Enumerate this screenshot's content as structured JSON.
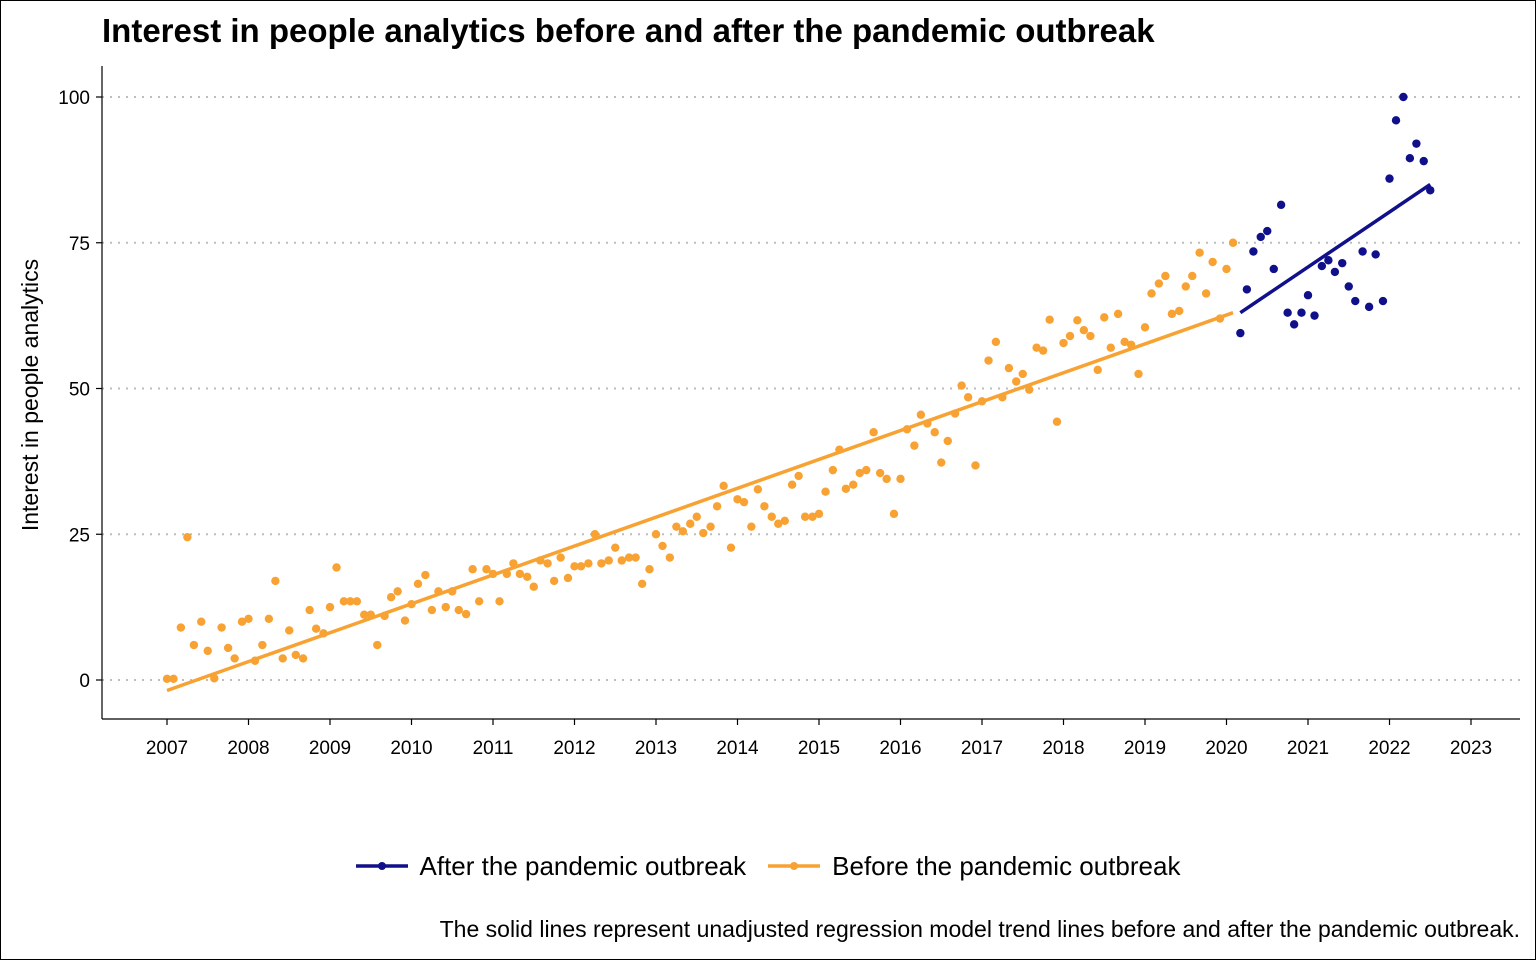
{
  "chart_data": {
    "type": "scatter",
    "title": "Interest in people analytics before and after the pandemic outbreak",
    "xlabel": "",
    "ylabel": "Interest in people analytics",
    "caption": "The solid lines represent unadjusted regression model trend lines before and after the pandemic outbreak.",
    "xlim": [
      2006.2,
      2023.3
    ],
    "ylim": [
      -6.5,
      105
    ],
    "x_ticks": [
      "2007",
      "2008",
      "2009",
      "2010",
      "2011",
      "2012",
      "2013",
      "2014",
      "2015",
      "2016",
      "2017",
      "2018",
      "2019",
      "2020",
      "2021",
      "2022",
      "2023"
    ],
    "y_ticks": [
      "0",
      "25",
      "50",
      "75",
      "100"
    ],
    "grid": "horizontal dotted",
    "legend_position": "bottom",
    "series": [
      {
        "name": "After the pandemic outbreak",
        "color": "#10108a",
        "trend": [
          [
            2020.17,
            63
          ],
          [
            2022.5,
            85
          ]
        ],
        "points": [
          [
            2020.17,
            59.5
          ],
          [
            2020.25,
            67
          ],
          [
            2020.33,
            73.5
          ],
          [
            2020.42,
            76
          ],
          [
            2020.5,
            77
          ],
          [
            2020.58,
            70.5
          ],
          [
            2020.67,
            81.5
          ],
          [
            2020.75,
            63
          ],
          [
            2020.83,
            61
          ],
          [
            2020.92,
            63
          ],
          [
            2021.0,
            66
          ],
          [
            2021.08,
            62.5
          ],
          [
            2021.17,
            71
          ],
          [
            2021.25,
            72
          ],
          [
            2021.33,
            70
          ],
          [
            2021.42,
            71.5
          ],
          [
            2021.5,
            67.5
          ],
          [
            2021.58,
            65
          ],
          [
            2021.67,
            73.5
          ],
          [
            2021.75,
            64
          ],
          [
            2021.83,
            73
          ],
          [
            2021.92,
            65
          ],
          [
            2022.0,
            86
          ],
          [
            2022.08,
            96
          ],
          [
            2022.17,
            100
          ],
          [
            2022.25,
            89.5
          ],
          [
            2022.33,
            92
          ],
          [
            2022.42,
            89
          ],
          [
            2022.5,
            84
          ]
        ]
      },
      {
        "name": "Before the pandemic outbreak",
        "color": "#f7a232",
        "trend": [
          [
            2007.0,
            -1.8
          ],
          [
            2020.08,
            63
          ]
        ],
        "points": [
          [
            2007.0,
            0.2
          ],
          [
            2007.08,
            0.2
          ],
          [
            2007.17,
            9
          ],
          [
            2007.25,
            24.5
          ],
          [
            2007.33,
            6
          ],
          [
            2007.42,
            10
          ],
          [
            2007.5,
            5
          ],
          [
            2007.58,
            0.3
          ],
          [
            2007.67,
            9
          ],
          [
            2007.75,
            5.5
          ],
          [
            2007.83,
            3.7
          ],
          [
            2007.92,
            10
          ],
          [
            2008.0,
            10.5
          ],
          [
            2008.08,
            3.3
          ],
          [
            2008.17,
            6
          ],
          [
            2008.25,
            10.5
          ],
          [
            2008.33,
            17
          ],
          [
            2008.42,
            3.7
          ],
          [
            2008.5,
            8.5
          ],
          [
            2008.58,
            4.3
          ],
          [
            2008.67,
            3.7
          ],
          [
            2008.75,
            12
          ],
          [
            2008.83,
            8.8
          ],
          [
            2008.92,
            8
          ],
          [
            2009.0,
            12.5
          ],
          [
            2009.08,
            19.3
          ],
          [
            2009.17,
            13.5
          ],
          [
            2009.25,
            13.5
          ],
          [
            2009.33,
            13.5
          ],
          [
            2009.42,
            11.2
          ],
          [
            2009.5,
            11.2
          ],
          [
            2009.58,
            6
          ],
          [
            2009.67,
            11
          ],
          [
            2009.75,
            14.2
          ],
          [
            2009.83,
            15.2
          ],
          [
            2009.92,
            10.2
          ],
          [
            2010.0,
            13
          ],
          [
            2010.08,
            16.5
          ],
          [
            2010.17,
            18
          ],
          [
            2010.25,
            12
          ],
          [
            2010.33,
            15.2
          ],
          [
            2010.42,
            12.5
          ],
          [
            2010.5,
            15.2
          ],
          [
            2010.58,
            12
          ],
          [
            2010.67,
            11.3
          ],
          [
            2010.75,
            19
          ],
          [
            2010.83,
            13.5
          ],
          [
            2010.92,
            19
          ],
          [
            2011.0,
            18.2
          ],
          [
            2011.08,
            13.5
          ],
          [
            2011.17,
            18.2
          ],
          [
            2011.25,
            20
          ],
          [
            2011.33,
            18.2
          ],
          [
            2011.42,
            17.7
          ],
          [
            2011.5,
            16
          ],
          [
            2011.58,
            20.5
          ],
          [
            2011.67,
            20
          ],
          [
            2011.75,
            17
          ],
          [
            2011.83,
            21
          ],
          [
            2011.92,
            17.5
          ],
          [
            2012.0,
            19.5
          ],
          [
            2012.08,
            19.5
          ],
          [
            2012.17,
            20
          ],
          [
            2012.25,
            25
          ],
          [
            2012.33,
            20
          ],
          [
            2012.42,
            20.5
          ],
          [
            2012.5,
            22.7
          ],
          [
            2012.58,
            20.5
          ],
          [
            2012.67,
            21
          ],
          [
            2012.75,
            21
          ],
          [
            2012.83,
            16.5
          ],
          [
            2012.92,
            19
          ],
          [
            2013.0,
            25
          ],
          [
            2013.08,
            23
          ],
          [
            2013.17,
            21
          ],
          [
            2013.25,
            26.3
          ],
          [
            2013.33,
            25.5
          ],
          [
            2013.42,
            26.8
          ],
          [
            2013.5,
            28
          ],
          [
            2013.58,
            25.2
          ],
          [
            2013.67,
            26.3
          ],
          [
            2013.75,
            29.8
          ],
          [
            2013.83,
            33.3
          ],
          [
            2013.92,
            22.7
          ],
          [
            2014.0,
            31
          ],
          [
            2014.08,
            30.5
          ],
          [
            2014.17,
            26.3
          ],
          [
            2014.25,
            32.7
          ],
          [
            2014.33,
            29.8
          ],
          [
            2014.42,
            28
          ],
          [
            2014.5,
            26.8
          ],
          [
            2014.58,
            27.3
          ],
          [
            2014.67,
            33.5
          ],
          [
            2014.75,
            35
          ],
          [
            2014.83,
            28
          ],
          [
            2014.92,
            28
          ],
          [
            2015.0,
            28.5
          ],
          [
            2015.08,
            32.3
          ],
          [
            2015.17,
            36
          ],
          [
            2015.25,
            39.5
          ],
          [
            2015.33,
            32.8
          ],
          [
            2015.42,
            33.5
          ],
          [
            2015.5,
            35.5
          ],
          [
            2015.58,
            36
          ],
          [
            2015.67,
            42.5
          ],
          [
            2015.75,
            35.5
          ],
          [
            2015.83,
            34.5
          ],
          [
            2015.92,
            28.5
          ],
          [
            2016.0,
            34.5
          ],
          [
            2016.08,
            43
          ],
          [
            2016.17,
            40.2
          ],
          [
            2016.25,
            45.5
          ],
          [
            2016.33,
            44
          ],
          [
            2016.42,
            42.5
          ],
          [
            2016.5,
            37.3
          ],
          [
            2016.58,
            41
          ],
          [
            2016.67,
            45.7
          ],
          [
            2016.75,
            50.5
          ],
          [
            2016.83,
            48.5
          ],
          [
            2016.92,
            36.8
          ],
          [
            2017.0,
            47.8
          ],
          [
            2017.08,
            54.8
          ],
          [
            2017.17,
            58
          ],
          [
            2017.25,
            48.5
          ],
          [
            2017.33,
            53.5
          ],
          [
            2017.42,
            51.2
          ],
          [
            2017.5,
            52.5
          ],
          [
            2017.58,
            49.8
          ],
          [
            2017.67,
            57
          ],
          [
            2017.75,
            56.5
          ],
          [
            2017.83,
            61.8
          ],
          [
            2017.92,
            44.3
          ],
          [
            2018.0,
            57.8
          ],
          [
            2018.08,
            59
          ],
          [
            2018.17,
            61.7
          ],
          [
            2018.25,
            60
          ],
          [
            2018.33,
            59
          ],
          [
            2018.42,
            53.2
          ],
          [
            2018.5,
            62.2
          ],
          [
            2018.58,
            57
          ],
          [
            2018.67,
            62.8
          ],
          [
            2018.75,
            58
          ],
          [
            2018.83,
            57.5
          ],
          [
            2018.92,
            52.5
          ],
          [
            2019.0,
            60.5
          ],
          [
            2019.08,
            66.3
          ],
          [
            2019.17,
            68
          ],
          [
            2019.25,
            69.3
          ],
          [
            2019.33,
            62.8
          ],
          [
            2019.42,
            63.3
          ],
          [
            2019.5,
            67.5
          ],
          [
            2019.58,
            69.3
          ],
          [
            2019.67,
            73.3
          ],
          [
            2019.75,
            66.3
          ],
          [
            2019.83,
            71.7
          ],
          [
            2019.92,
            62
          ],
          [
            2020.0,
            70.5
          ],
          [
            2020.08,
            75
          ]
        ]
      }
    ]
  }
}
